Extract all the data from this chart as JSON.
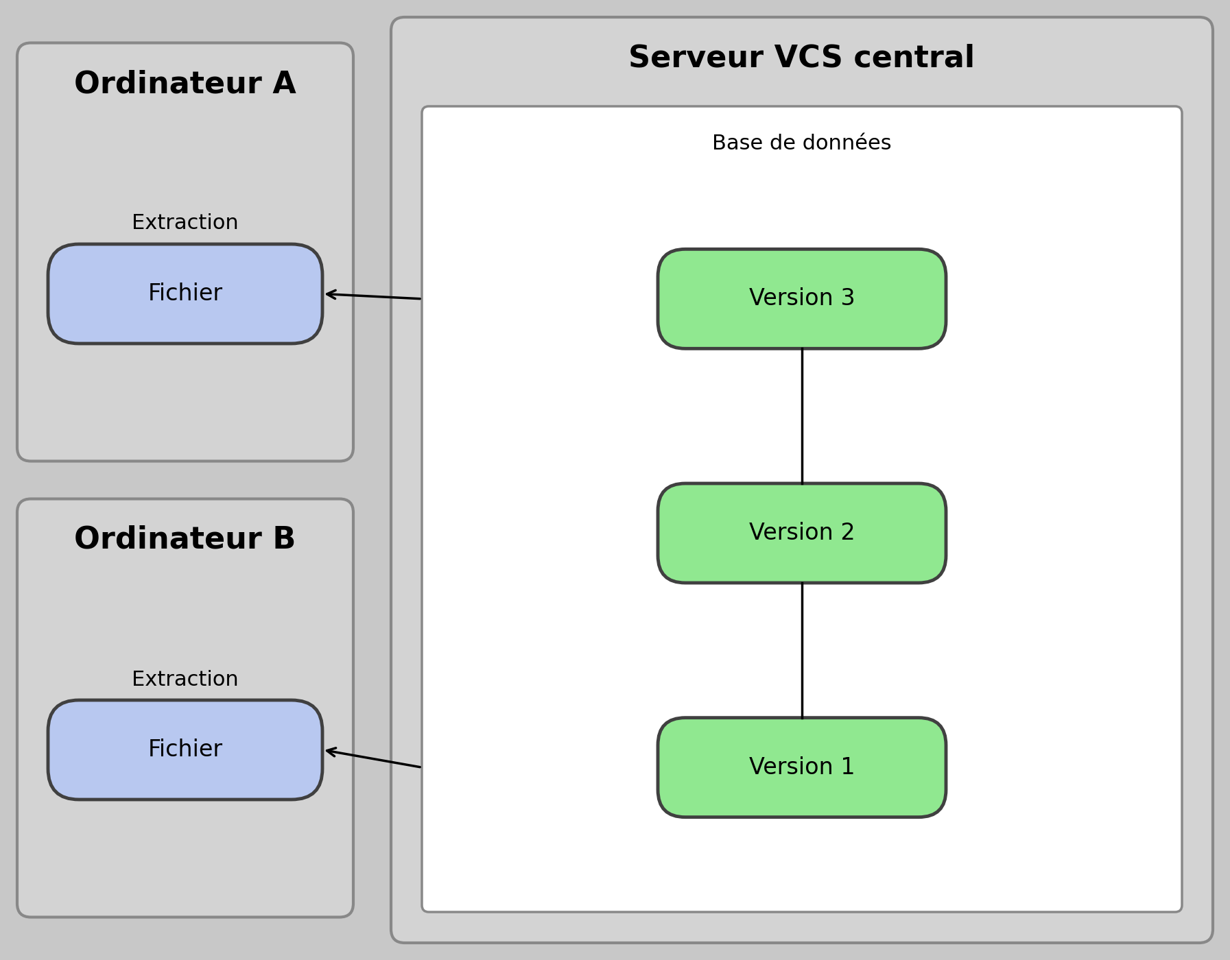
{
  "bg_color": "#c8c8c8",
  "white": "#ffffff",
  "light_gray": "#d3d3d3",
  "blue_fill": "#b8c8f0",
  "green_fill": "#90e890",
  "dark_outline": "#404040",
  "gray_outline": "#888888",
  "title_server": "Serveur VCS central",
  "title_A": "Ordinateur A",
  "title_B": "Ordinateur B",
  "label_db": "Base de données",
  "label_extraction": "Extraction",
  "label_fichier": "Fichier",
  "label_v3": "Version 3",
  "label_v2": "Version 2",
  "label_v1": "Version 1",
  "title_fontsize": 32,
  "label_fontsize": 24,
  "db_label_fontsize": 22,
  "extract_fontsize": 22
}
